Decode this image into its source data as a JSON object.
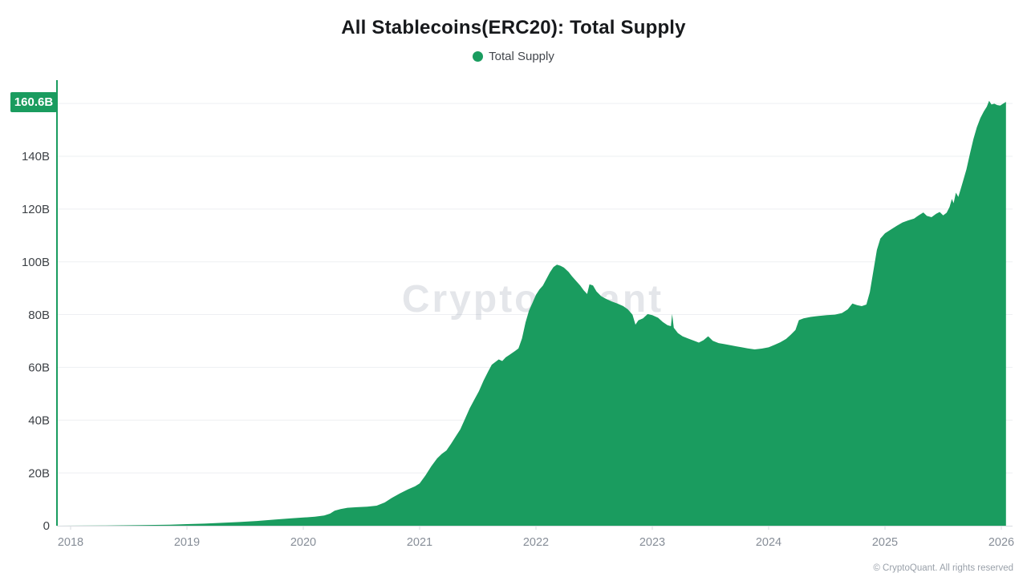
{
  "chart_data": {
    "type": "area",
    "title": "All Stablecoins(ERC20): Total Supply",
    "legend": [
      {
        "label": "Total Supply",
        "color": "#1a9c5f"
      }
    ],
    "xlabel": "",
    "ylabel": "",
    "x_ticks": [
      "2018",
      "2019",
      "2020",
      "2021",
      "2022",
      "2023",
      "2024",
      "2025",
      "2026"
    ],
    "y_ticks": [
      {
        "value": 0,
        "label": "0"
      },
      {
        "value": 20,
        "label": "20B"
      },
      {
        "value": 40,
        "label": "40B"
      },
      {
        "value": 60,
        "label": "60B"
      },
      {
        "value": 80,
        "label": "80B"
      },
      {
        "value": 100,
        "label": "100B"
      },
      {
        "value": 120,
        "label": "120B"
      },
      {
        "value": 140,
        "label": "140B"
      },
      {
        "value": 160,
        "label": ""
      }
    ],
    "ylim": [
      0,
      168
    ],
    "xlim": [
      2017.89,
      2026.12
    ],
    "grid": true,
    "legend_position": "top-center",
    "current_value": 160.6,
    "current_value_label": "160.6B",
    "unit": "B",
    "series": [
      {
        "name": "Total Supply",
        "color": "#1a9c5f",
        "points": [
          [
            2017.89,
            0
          ],
          [
            2018.3,
            0.1
          ],
          [
            2018.6,
            0.2
          ],
          [
            2018.85,
            0.35
          ],
          [
            2019.0,
            0.6
          ],
          [
            2019.15,
            0.8
          ],
          [
            2019.3,
            1.1
          ],
          [
            2019.45,
            1.4
          ],
          [
            2019.6,
            1.8
          ],
          [
            2019.75,
            2.3
          ],
          [
            2019.9,
            2.8
          ],
          [
            2020.0,
            3.1
          ],
          [
            2020.1,
            3.4
          ],
          [
            2020.18,
            3.9
          ],
          [
            2020.23,
            4.6
          ],
          [
            2020.27,
            5.7
          ],
          [
            2020.32,
            6.3
          ],
          [
            2020.38,
            6.8
          ],
          [
            2020.46,
            7.0
          ],
          [
            2020.55,
            7.2
          ],
          [
            2020.63,
            7.6
          ],
          [
            2020.7,
            8.8
          ],
          [
            2020.76,
            10.5
          ],
          [
            2020.83,
            12.2
          ],
          [
            2020.9,
            13.8
          ],
          [
            2020.96,
            14.9
          ],
          [
            2021.0,
            16.0
          ],
          [
            2021.05,
            19.0
          ],
          [
            2021.1,
            22.5
          ],
          [
            2021.15,
            25.5
          ],
          [
            2021.19,
            27.2
          ],
          [
            2021.23,
            28.5
          ],
          [
            2021.27,
            31.0
          ],
          [
            2021.31,
            33.8
          ],
          [
            2021.35,
            36.5
          ],
          [
            2021.39,
            40.5
          ],
          [
            2021.43,
            44.5
          ],
          [
            2021.47,
            47.8
          ],
          [
            2021.51,
            51.0
          ],
          [
            2021.55,
            55.0
          ],
          [
            2021.59,
            58.5
          ],
          [
            2021.62,
            61.0
          ],
          [
            2021.65,
            62.0
          ],
          [
            2021.68,
            63.0
          ],
          [
            2021.71,
            62.4
          ],
          [
            2021.74,
            63.8
          ],
          [
            2021.78,
            65.0
          ],
          [
            2021.82,
            66.2
          ],
          [
            2021.85,
            67.2
          ],
          [
            2021.88,
            71.0
          ],
          [
            2021.91,
            77.0
          ],
          [
            2021.94,
            81.5
          ],
          [
            2021.97,
            84.5
          ],
          [
            2022.0,
            87.5
          ],
          [
            2022.03,
            89.5
          ],
          [
            2022.06,
            91.0
          ],
          [
            2022.09,
            93.5
          ],
          [
            2022.12,
            96.0
          ],
          [
            2022.15,
            98.0
          ],
          [
            2022.18,
            98.9
          ],
          [
            2022.21,
            98.5
          ],
          [
            2022.24,
            97.8
          ],
          [
            2022.28,
            96.2
          ],
          [
            2022.31,
            94.5
          ],
          [
            2022.34,
            93.0
          ],
          [
            2022.38,
            91.0
          ],
          [
            2022.41,
            89.2
          ],
          [
            2022.44,
            87.8
          ],
          [
            2022.46,
            91.5
          ],
          [
            2022.49,
            91.0
          ],
          [
            2022.52,
            88.8
          ],
          [
            2022.56,
            87.0
          ],
          [
            2022.6,
            86.0
          ],
          [
            2022.65,
            85.0
          ],
          [
            2022.7,
            84.2
          ],
          [
            2022.75,
            83.2
          ],
          [
            2022.79,
            82.0
          ],
          [
            2022.83,
            80.0
          ],
          [
            2022.855,
            76.2
          ],
          [
            2022.88,
            77.8
          ],
          [
            2022.92,
            78.6
          ],
          [
            2022.96,
            80.2
          ],
          [
            2023.0,
            79.8
          ],
          [
            2023.05,
            78.8
          ],
          [
            2023.09,
            77.2
          ],
          [
            2023.13,
            76.0
          ],
          [
            2023.16,
            75.6
          ],
          [
            2023.17,
            80.2
          ],
          [
            2023.185,
            75.0
          ],
          [
            2023.22,
            73.0
          ],
          [
            2023.26,
            71.8
          ],
          [
            2023.31,
            70.9
          ],
          [
            2023.36,
            70.1
          ],
          [
            2023.4,
            69.4
          ],
          [
            2023.44,
            70.3
          ],
          [
            2023.48,
            71.8
          ],
          [
            2023.52,
            70.1
          ],
          [
            2023.57,
            69.2
          ],
          [
            2023.62,
            68.8
          ],
          [
            2023.67,
            68.4
          ],
          [
            2023.72,
            68.0
          ],
          [
            2023.77,
            67.6
          ],
          [
            2023.82,
            67.2
          ],
          [
            2023.88,
            66.8
          ],
          [
            2023.94,
            67.1
          ],
          [
            2024.0,
            67.6
          ],
          [
            2024.05,
            68.5
          ],
          [
            2024.1,
            69.5
          ],
          [
            2024.15,
            70.8
          ],
          [
            2024.19,
            72.4
          ],
          [
            2024.23,
            74.2
          ],
          [
            2024.26,
            77.9
          ],
          [
            2024.3,
            78.6
          ],
          [
            2024.36,
            79.1
          ],
          [
            2024.43,
            79.5
          ],
          [
            2024.5,
            79.8
          ],
          [
            2024.57,
            80.0
          ],
          [
            2024.63,
            80.6
          ],
          [
            2024.68,
            82.0
          ],
          [
            2024.72,
            84.2
          ],
          [
            2024.76,
            83.6
          ],
          [
            2024.8,
            83.2
          ],
          [
            2024.84,
            83.8
          ],
          [
            2024.87,
            88.5
          ],
          [
            2024.9,
            96.5
          ],
          [
            2024.93,
            104.5
          ],
          [
            2024.96,
            108.8
          ],
          [
            2025.0,
            110.8
          ],
          [
            2025.05,
            112.2
          ],
          [
            2025.1,
            113.6
          ],
          [
            2025.15,
            114.9
          ],
          [
            2025.2,
            115.7
          ],
          [
            2025.25,
            116.4
          ],
          [
            2025.29,
            117.6
          ],
          [
            2025.33,
            118.7
          ],
          [
            2025.36,
            117.4
          ],
          [
            2025.4,
            116.9
          ],
          [
            2025.44,
            118.2
          ],
          [
            2025.47,
            118.9
          ],
          [
            2025.5,
            117.6
          ],
          [
            2025.53,
            118.6
          ],
          [
            2025.555,
            120.8
          ],
          [
            2025.575,
            123.8
          ],
          [
            2025.59,
            122.2
          ],
          [
            2025.61,
            126.2
          ],
          [
            2025.63,
            124.6
          ],
          [
            2025.65,
            127.5
          ],
          [
            2025.67,
            130.5
          ],
          [
            2025.7,
            135.0
          ],
          [
            2025.73,
            141.0
          ],
          [
            2025.76,
            146.5
          ],
          [
            2025.79,
            151.0
          ],
          [
            2025.82,
            154.5
          ],
          [
            2025.85,
            157.0
          ],
          [
            2025.875,
            158.8
          ],
          [
            2025.895,
            161.0
          ],
          [
            2025.915,
            159.6
          ],
          [
            2025.94,
            159.9
          ],
          [
            2025.965,
            159.4
          ],
          [
            2025.99,
            159.2
          ],
          [
            2026.015,
            159.9
          ],
          [
            2026.04,
            160.6
          ]
        ]
      }
    ]
  },
  "watermark": {
    "text": "CryptoQuant"
  },
  "footer": {
    "copyright": "© CryptoQuant. All rights reserved"
  }
}
